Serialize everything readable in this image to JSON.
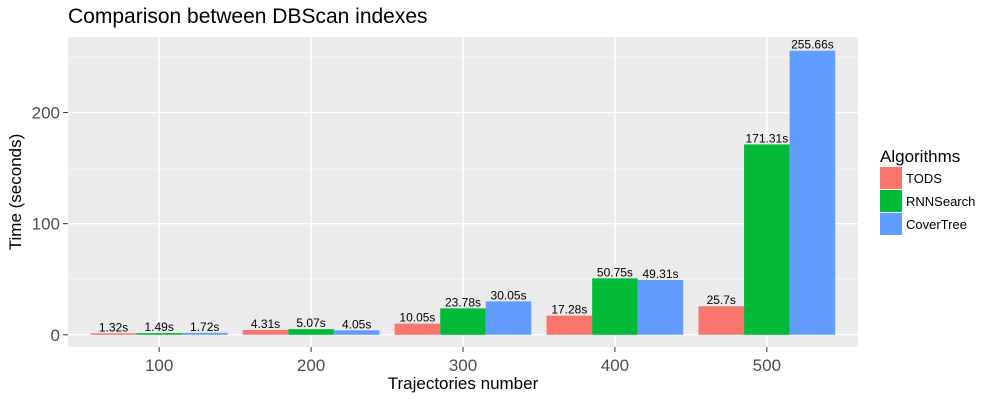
{
  "chart_data": {
    "type": "bar",
    "title": "Comparison between DBScan indexes",
    "xlabel": "Trajectories number",
    "ylabel": "Time (seconds)",
    "categories": [
      "100",
      "200",
      "300",
      "400",
      "500"
    ],
    "y_ticks": [
      0,
      100,
      200
    ],
    "ylim": [
      -11,
      268
    ],
    "grid": true,
    "legend": {
      "title": "Algorithms",
      "position": "right"
    },
    "series": [
      {
        "name": "TODS",
        "color": "#F8766D",
        "values": [
          1.32,
          4.31,
          10.05,
          17.28,
          25.7
        ],
        "labels": [
          "1.32s",
          "4.31s",
          "10.05s",
          "17.28s",
          "25.7s"
        ]
      },
      {
        "name": "RNNSearch",
        "color": "#00BA38",
        "values": [
          1.49,
          5.07,
          23.78,
          50.75,
          171.31
        ],
        "labels": [
          "1.49s",
          "5.07s",
          "23.78s",
          "50.75s",
          "171.31s"
        ]
      },
      {
        "name": "CoverTree",
        "color": "#619CFF",
        "values": [
          1.72,
          4.05,
          30.05,
          49.31,
          255.66
        ],
        "labels": [
          "1.72s",
          "4.05s",
          "30.05s",
          "49.31s",
          "255.66s"
        ]
      }
    ],
    "colors": {
      "panel": "#EBEBEB",
      "grid_major": "#FFFFFF",
      "grid_minor": "#F5F5F5"
    }
  }
}
